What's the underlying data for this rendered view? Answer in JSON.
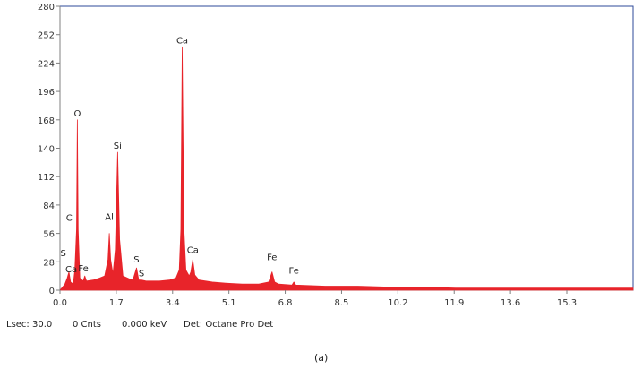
{
  "chart_data": {
    "type": "area",
    "title": "",
    "xlabel": "",
    "ylabel": "",
    "x_unit": "keV",
    "xlim": [
      0,
      17.3
    ],
    "ylim": [
      0,
      280
    ],
    "x_ticks": [
      "0.0",
      "1.7",
      "3.4",
      "5.1",
      "6.8",
      "8.5",
      "10.2",
      "11.9",
      "13.6",
      "15.3"
    ],
    "y_ticks": [
      "0",
      "28",
      "56",
      "84",
      "112",
      "140",
      "168",
      "196",
      "224",
      "252",
      "280"
    ],
    "grid": false,
    "series": [
      {
        "points": [
          [
            0.0,
            0
          ],
          [
            0.15,
            6
          ],
          [
            0.22,
            12
          ],
          [
            0.27,
            18
          ],
          [
            0.32,
            8
          ],
          [
            0.4,
            6
          ],
          [
            0.45,
            20
          ],
          [
            0.5,
            60
          ],
          [
            0.525,
            168
          ],
          [
            0.55,
            60
          ],
          [
            0.6,
            12
          ],
          [
            0.7,
            9
          ],
          [
            0.75,
            14
          ],
          [
            0.8,
            9
          ],
          [
            1.0,
            10
          ],
          [
            1.2,
            12
          ],
          [
            1.35,
            14
          ],
          [
            1.45,
            30
          ],
          [
            1.49,
            56
          ],
          [
            1.53,
            30
          ],
          [
            1.6,
            16
          ],
          [
            1.67,
            40
          ],
          [
            1.74,
            136
          ],
          [
            1.8,
            50
          ],
          [
            1.9,
            14
          ],
          [
            2.1,
            11
          ],
          [
            2.2,
            10
          ],
          [
            2.31,
            22
          ],
          [
            2.38,
            10
          ],
          [
            2.46,
            10
          ],
          [
            2.6,
            9
          ],
          [
            3.0,
            9
          ],
          [
            3.3,
            10
          ],
          [
            3.5,
            12
          ],
          [
            3.6,
            20
          ],
          [
            3.65,
            60
          ],
          [
            3.69,
            240
          ],
          [
            3.74,
            60
          ],
          [
            3.8,
            20
          ],
          [
            3.9,
            14
          ],
          [
            3.95,
            18
          ],
          [
            4.01,
            30
          ],
          [
            4.07,
            15
          ],
          [
            4.2,
            10
          ],
          [
            4.6,
            8
          ],
          [
            5.0,
            7
          ],
          [
            5.5,
            6
          ],
          [
            6.0,
            6
          ],
          [
            6.3,
            8
          ],
          [
            6.4,
            18
          ],
          [
            6.48,
            8
          ],
          [
            6.6,
            6
          ],
          [
            7.0,
            5
          ],
          [
            7.06,
            8
          ],
          [
            7.12,
            5
          ],
          [
            8.0,
            4
          ],
          [
            9.0,
            4
          ],
          [
            10.0,
            3
          ],
          [
            11.0,
            3
          ],
          [
            12.0,
            2
          ],
          [
            13.0,
            2
          ],
          [
            14.0,
            2
          ],
          [
            15.0,
            2
          ],
          [
            16.0,
            2
          ],
          [
            17.3,
            2
          ]
        ]
      }
    ],
    "annotations": [
      {
        "text": "Ca",
        "x": 3.69,
        "y": 240
      },
      {
        "text": "O",
        "x": 0.525,
        "y": 168
      },
      {
        "text": "Si",
        "x": 1.74,
        "y": 136
      },
      {
        "text": "C",
        "x": 0.277,
        "y": 65
      },
      {
        "text": "Al",
        "x": 1.49,
        "y": 66
      },
      {
        "text": "Ca",
        "x": 4.01,
        "y": 33
      },
      {
        "text": "S",
        "x": 0.1,
        "y": 30
      },
      {
        "text": "Ca",
        "x": 0.34,
        "y": 14
      },
      {
        "text": "Fe",
        "x": 0.705,
        "y": 15
      },
      {
        "text": "S",
        "x": 2.31,
        "y": 24
      },
      {
        "text": "S",
        "x": 2.46,
        "y": 10
      },
      {
        "text": "Fe",
        "x": 6.4,
        "y": 26
      },
      {
        "text": "Fe",
        "x": 7.06,
        "y": 13
      }
    ],
    "colors": {
      "fill": "#e8242a",
      "frame": "#2e4a9a",
      "axis": "#808080"
    }
  },
  "status_bar": {
    "lsec": "Lsec: 30.0",
    "cnts": "0 Cnts",
    "kev": "0.000 keV",
    "det": "Det: Octane Pro Det"
  },
  "caption": "(a)"
}
